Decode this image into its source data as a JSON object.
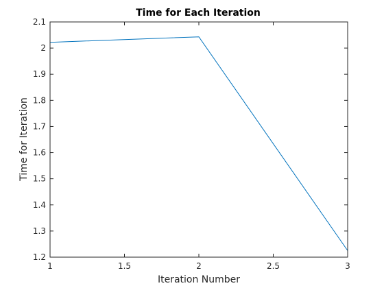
{
  "chart_data": {
    "type": "line",
    "title": "Time for Each Iteration",
    "xlabel": "Iteration Number",
    "ylabel": "Time for Iteration",
    "xlim": [
      1,
      3
    ],
    "ylim": [
      1.2,
      2.1
    ],
    "x_ticks": [
      "1",
      "1.5",
      "2",
      "2.5",
      "3"
    ],
    "y_ticks": [
      "1.2",
      "1.3",
      "1.4",
      "1.5",
      "1.6",
      "1.7",
      "1.8",
      "1.9",
      "2",
      "2.1"
    ],
    "grid": false,
    "series": [
      {
        "x": [
          1,
          2,
          3
        ],
        "values": [
          2.022,
          2.043,
          1.225
        ],
        "color": "#0072BD"
      }
    ]
  }
}
